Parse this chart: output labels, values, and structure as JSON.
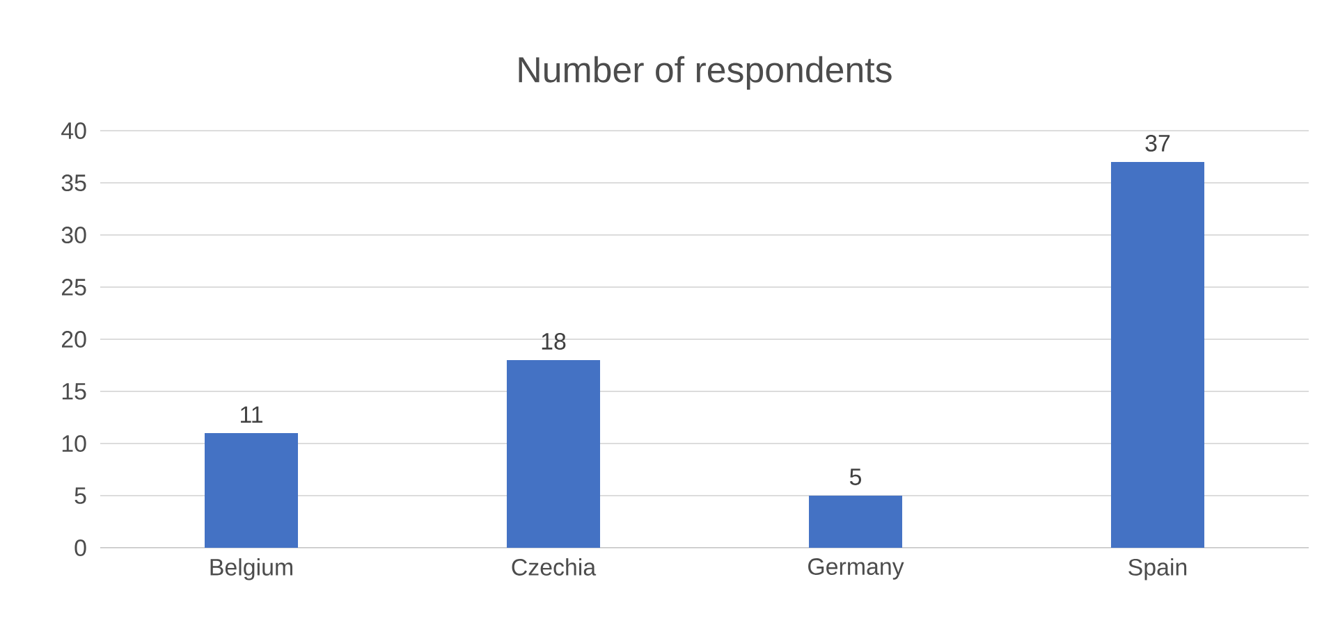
{
  "chart_data": {
    "type": "bar",
    "title": "Number of respondents",
    "categories": [
      "Belgium",
      "Czechia",
      "Germany",
      "Spain"
    ],
    "values": [
      11,
      18,
      5,
      37
    ],
    "color": "#4472c4",
    "ylim": [
      0,
      40
    ],
    "yticks": [
      0,
      5,
      10,
      15,
      20,
      25,
      30,
      35,
      40
    ],
    "grid": "y",
    "data_labels": true
  }
}
